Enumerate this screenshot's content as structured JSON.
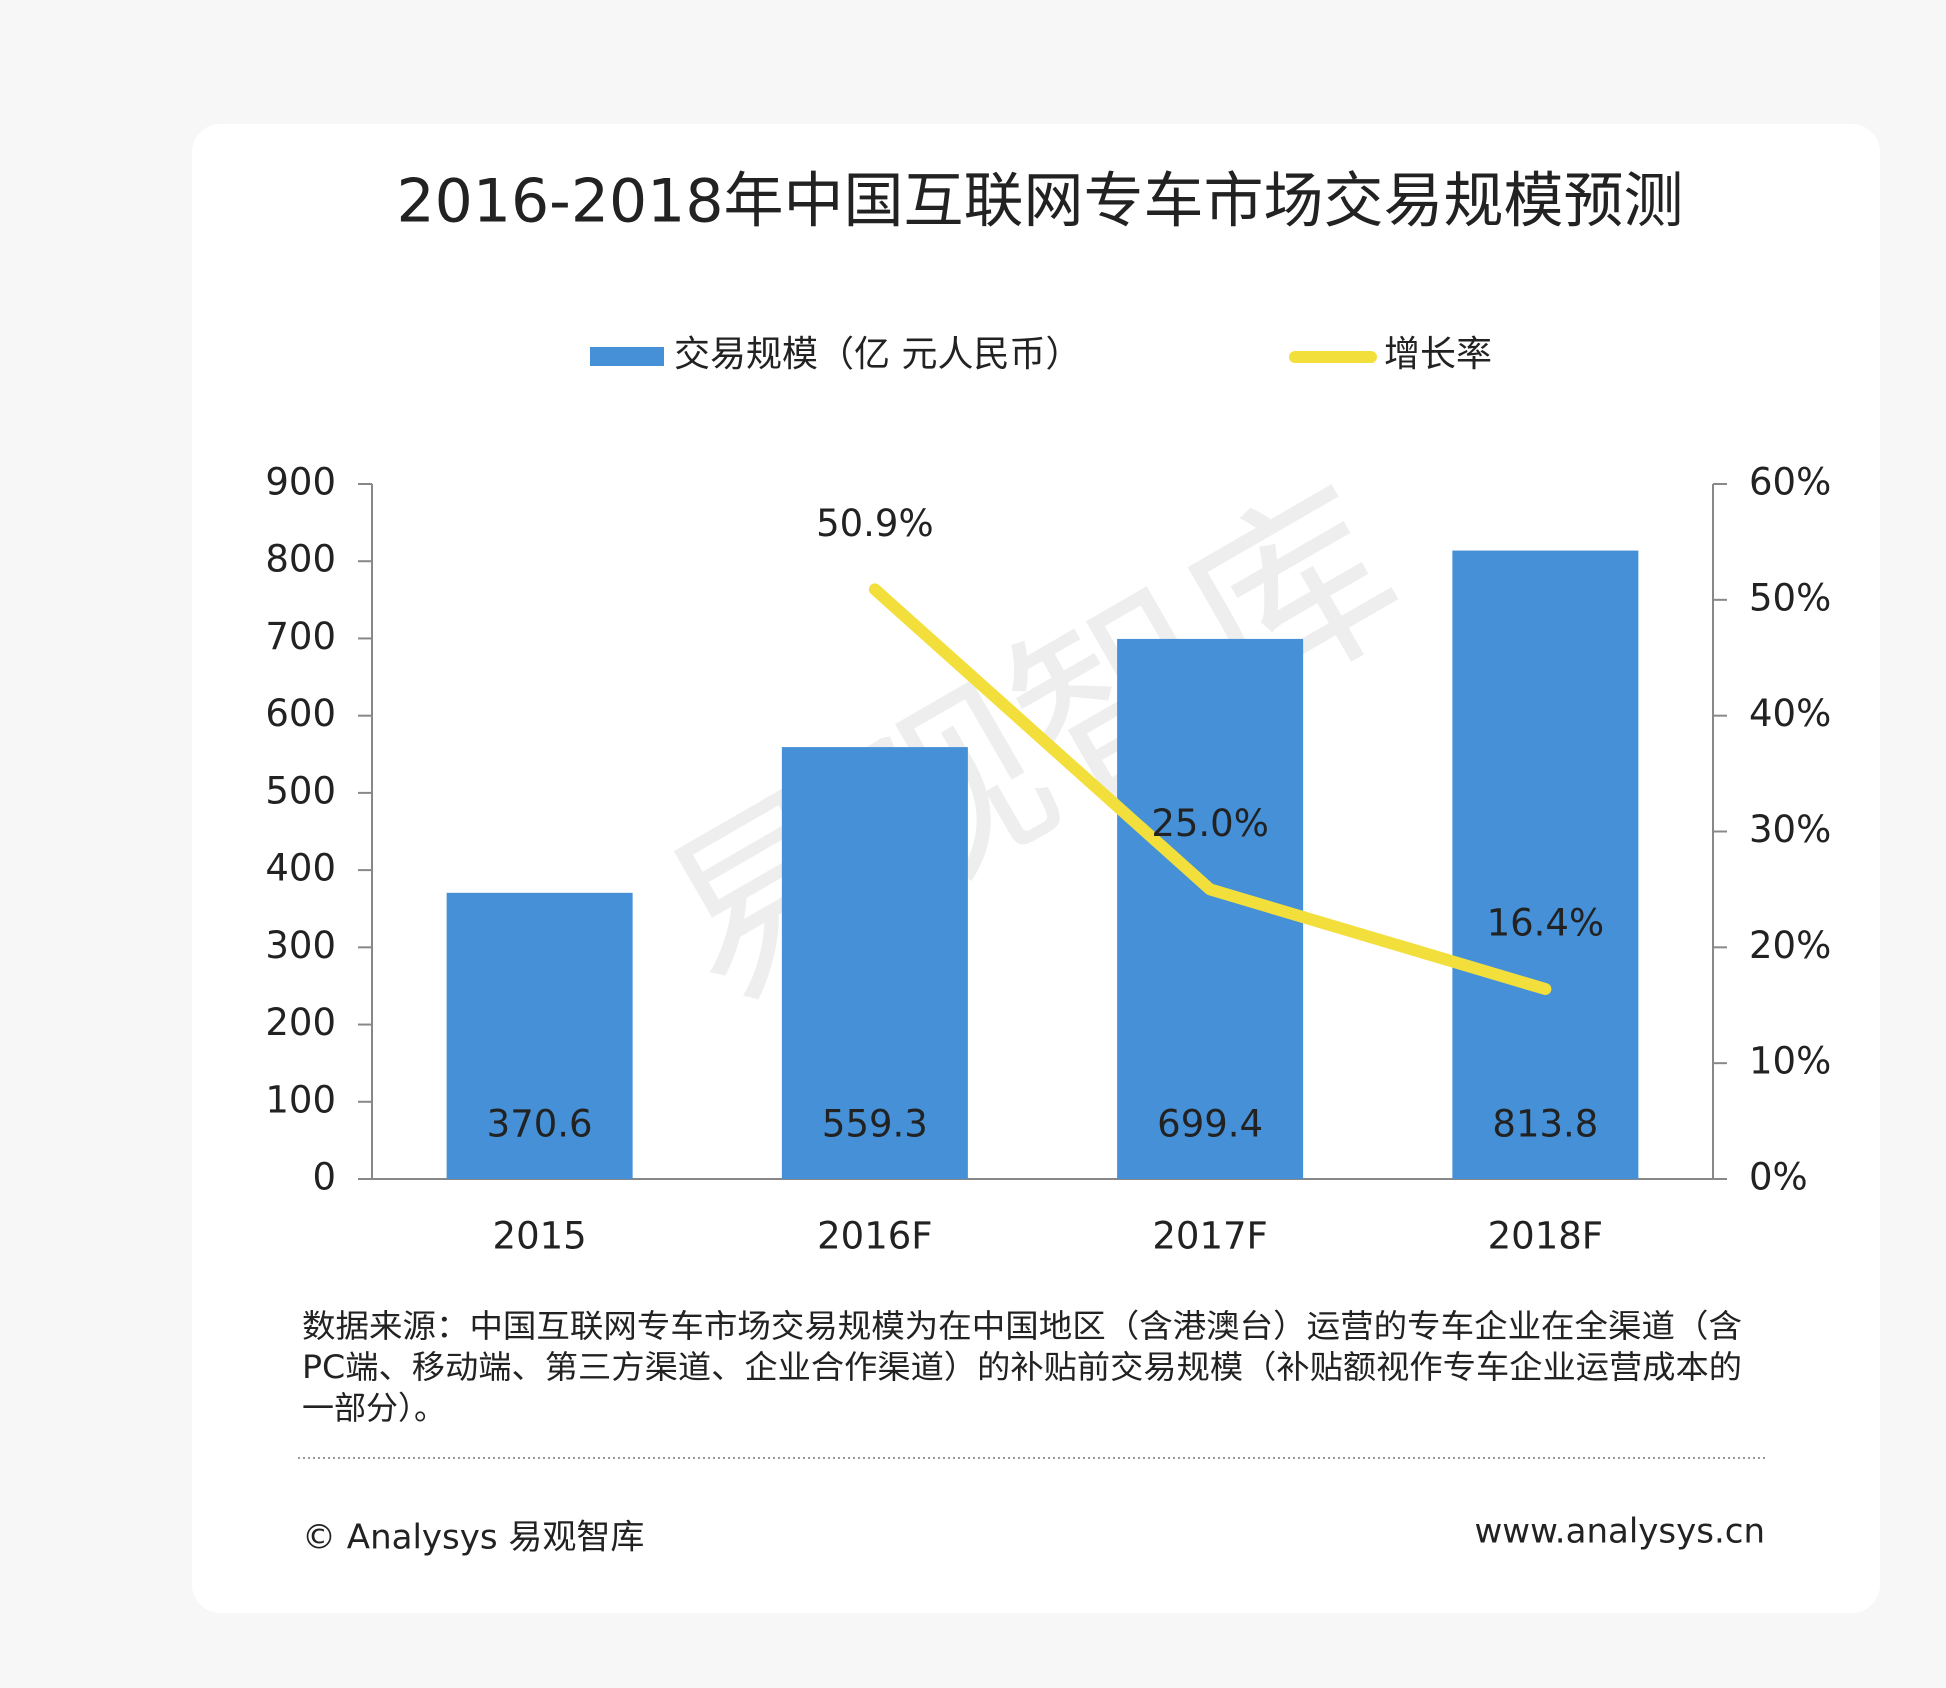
{
  "chart_data": {
    "type": "bar-line",
    "title": "2016-2018年中国互联网专车市场交易规模预测",
    "categories": [
      "2015",
      "2016F",
      "2017F",
      "2018F"
    ],
    "series": [
      {
        "name": "交易规模（亿 元人民币）",
        "type": "bar",
        "color": "#4590d6",
        "values": [
          370.6,
          559.3,
          699.4,
          813.8
        ]
      },
      {
        "name": "增长率",
        "type": "line",
        "axis": "y2",
        "color": "#f3df3c",
        "values": [
          null,
          50.9,
          25.0,
          16.4
        ],
        "value_labels": [
          null,
          "50.9%",
          "25.0%",
          "16.4%"
        ]
      }
    ],
    "ylim": [
      0,
      900
    ],
    "yticks": [
      0,
      100,
      200,
      300,
      400,
      500,
      600,
      700,
      800,
      900
    ],
    "y2lim": [
      0,
      60
    ],
    "y2ticks": [
      {
        "value": 0,
        "label": "0%"
      },
      {
        "value": 10,
        "label": "10%"
      },
      {
        "value": 20,
        "label": "20%"
      },
      {
        "value": 30,
        "label": "30%"
      },
      {
        "value": 40,
        "label": "40%"
      },
      {
        "value": 50,
        "label": "50%"
      },
      {
        "value": 60,
        "label": "60%"
      }
    ],
    "legend": "top",
    "watermark": "易观智库",
    "note": [
      "数据来源：中国互联网专车市场交易规模为在中国地区（含港澳台）运营的专车企业在全渠道（含",
      "PC端、移动端、第三方渠道、企业合作渠道）的补贴前交易规模（补贴额视作专车企业运营成本的",
      "一部分）。"
    ],
    "footer_left": "© Analysys 易观智库",
    "footer_right": "www.analysys.cn"
  }
}
